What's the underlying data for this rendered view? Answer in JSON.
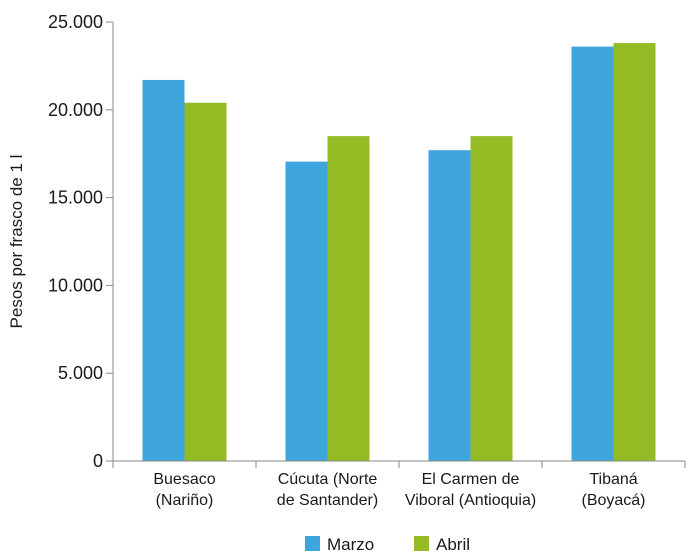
{
  "chart_data": {
    "type": "bar",
    "title": "",
    "xlabel": "",
    "ylabel": "Pesos por frasco de 1 l",
    "ylim": [
      0,
      25000
    ],
    "y_ticks": [
      0,
      5000,
      10000,
      15000,
      20000,
      25000
    ],
    "y_tick_labels": [
      "0",
      "5.000",
      "10.000",
      "15.000",
      "20.000",
      "25.000"
    ],
    "categories": [
      [
        "Buesaco",
        "(Nariño)"
      ],
      [
        "Cúcuta (Norte",
        "de Santander)"
      ],
      [
        "El Carmen de",
        "Viboral (Antioquia)"
      ],
      [
        "Tibaná",
        "(Boyacá)"
      ]
    ],
    "series": [
      {
        "name": "Marzo",
        "color": "#3ea5dd",
        "values": [
          21700,
          17050,
          17700,
          23600
        ]
      },
      {
        "name": "Abril",
        "color": "#95bb24",
        "values": [
          20400,
          18500,
          18500,
          23800
        ]
      }
    ],
    "grid": false,
    "legend": "bottom"
  }
}
